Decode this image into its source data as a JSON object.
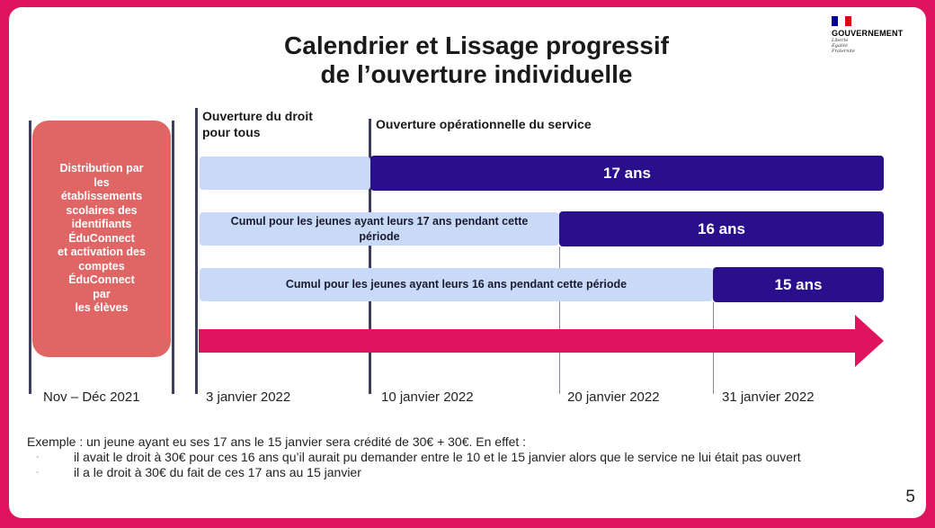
{
  "title": {
    "line1": "Calendrier et Lissage progressif",
    "line2": "de l’ouverture individuelle"
  },
  "logo": {
    "text": "GOUVERNEMENT",
    "motto": [
      "Liberté",
      "Égalité",
      "Fraternité"
    ],
    "flag_colors": [
      "#000091",
      "#ffffff",
      "#e1000f"
    ]
  },
  "headers": {
    "droit": "Ouverture du droit\npour tous",
    "operationnelle": "Ouverture opérationnelle du service"
  },
  "distribution": "Distribution par\nles\nétablissements\nscolaires des\nidentifiants\nÉduConnect\net activation des\ncomptes\nÉduConnect\npar\nles élèves",
  "rows": [
    {
      "cumul": "",
      "age": "17 ans"
    },
    {
      "cumul": "Cumul pour les jeunes ayant leurs 17 ans pendant cette période",
      "age": "16 ans"
    },
    {
      "cumul": "Cumul pour les jeunes ayant leurs 16 ans pendant cette période",
      "age": "15 ans"
    }
  ],
  "dates": [
    "Nov – Déc 2021",
    "3 janvier 2022",
    "10 janvier 2022",
    "20 janvier 2022",
    "31 janvier 2022"
  ],
  "example": {
    "intro": "Exemple : un jeune ayant eu ses 17 ans le 15 janvier sera crédité de 30€ + 30€. En effet :",
    "bullets": [
      "il avait le droit à 30€ pour ces 16 ans qu’il aurait pu demander entre le 10 et le 15 janvier alors que le service ne lui était pas ouvert",
      "il a le droit à 30€ du fait de ces 17 ans au 15 janvier"
    ]
  },
  "page_number": "5",
  "colors": {
    "frame": "#e0135e",
    "dark_bar": "#2a0f8c",
    "light_bar": "#c9daf8",
    "pink_box": "#e06666",
    "arrow": "#e0135e"
  }
}
